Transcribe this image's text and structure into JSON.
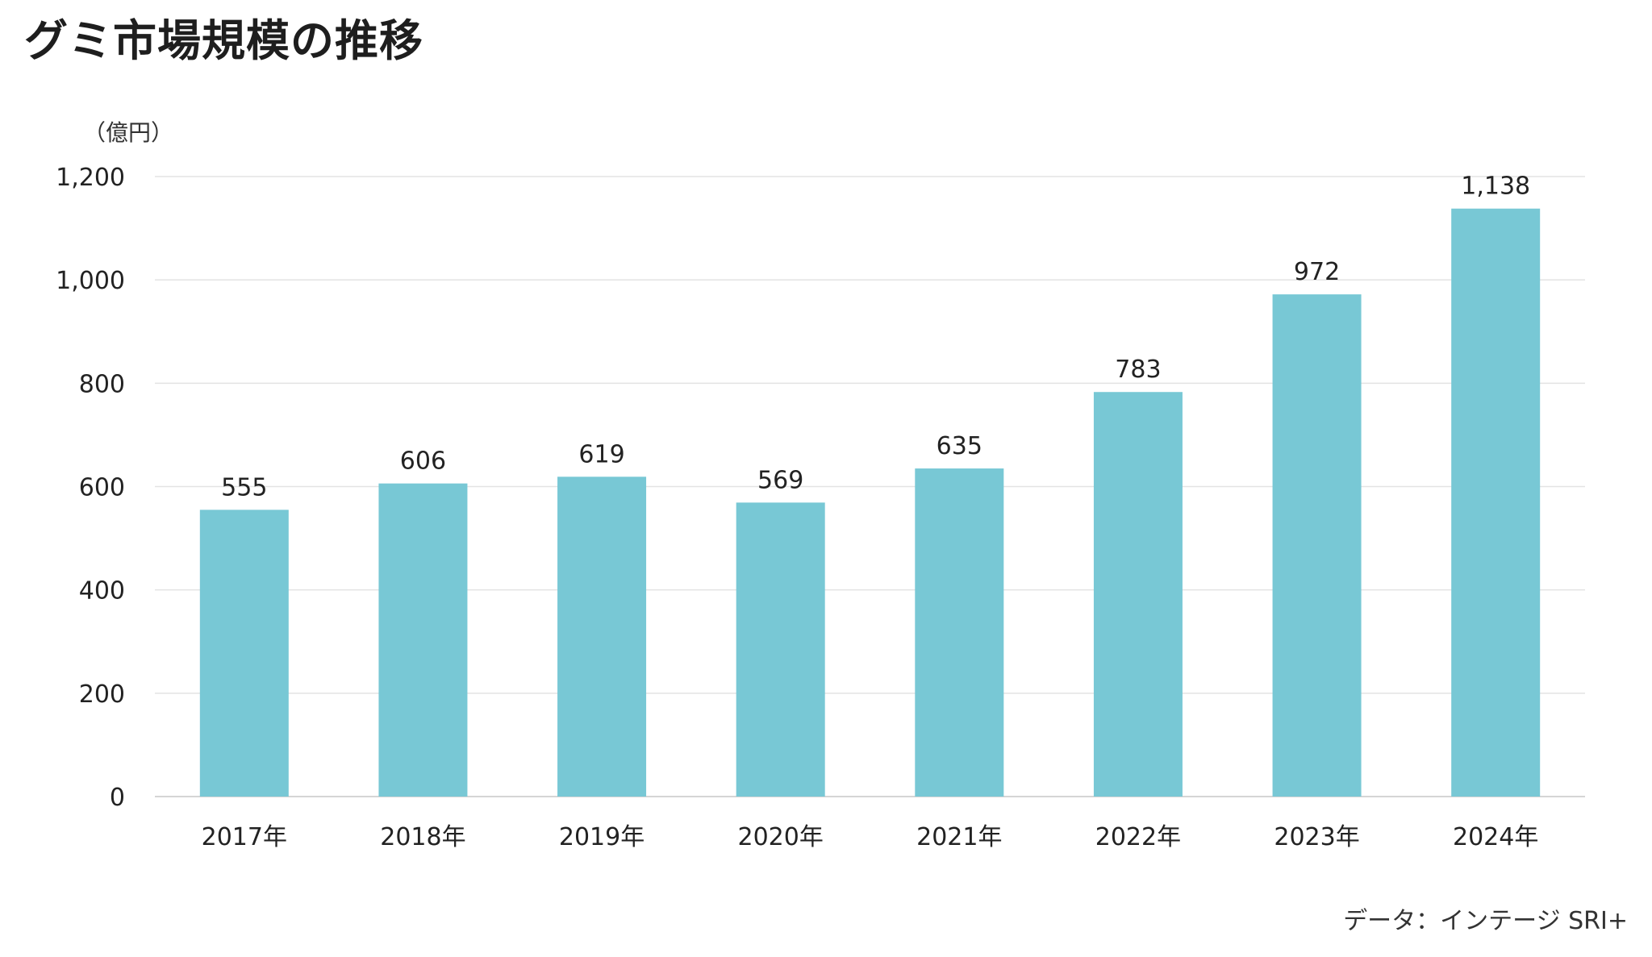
{
  "title": "グミ市場規模の推移",
  "source": "データ：インテージ SRI+",
  "colors": {
    "bar": "#78C8D5",
    "grid": "#E3E3E3",
    "axis": "#D5D5D5",
    "text": "#222222"
  },
  "chart_data": {
    "type": "bar",
    "title": "グミ市場規模の推移",
    "ylabel": "（億円）",
    "xlabel": "",
    "categories": [
      "2017年",
      "2018年",
      "2019年",
      "2020年",
      "2021年",
      "2022年",
      "2023年",
      "2024年"
    ],
    "values": [
      555,
      606,
      619,
      569,
      635,
      783,
      972,
      1138
    ],
    "data_labels": [
      "555",
      "606",
      "619",
      "569",
      "635",
      "783",
      "972",
      "1,138"
    ],
    "ylim": [
      0,
      1200
    ],
    "yticks": [
      0,
      200,
      400,
      600,
      800,
      1000,
      1200
    ],
    "ytick_labels": [
      "0",
      "200",
      "400",
      "600",
      "800",
      "1,000",
      "1,200"
    ],
    "grid": true,
    "legend": "none"
  }
}
